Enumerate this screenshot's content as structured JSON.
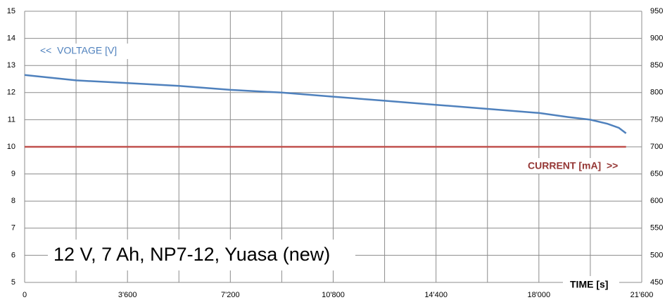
{
  "chart_data": {
    "type": "line",
    "title": "12 V, 7 Ah, NP7-12, Yuasa (new)",
    "x_label": "TIME [s]",
    "annotations": [
      "<<  VOLTAGE [V]",
      "CURRENT [mA]  >>"
    ],
    "series": [
      {
        "name": "VOLTAGE [V]",
        "color": "#4f81bd",
        "axis": "y",
        "x": [
          0,
          1800,
          3600,
          5400,
          7200,
          9000,
          10800,
          12600,
          14400,
          16200,
          18000,
          19000,
          19800,
          20400,
          20800,
          21050
        ],
        "values": [
          12.65,
          12.45,
          12.35,
          12.25,
          12.1,
          12.0,
          11.85,
          11.7,
          11.55,
          11.4,
          11.25,
          11.1,
          11.0,
          10.85,
          10.7,
          10.5
        ]
      },
      {
        "name": "CURRENT [mA]",
        "color": "#c0504d",
        "axis": "y2",
        "x": [
          0,
          21050
        ],
        "values": [
          700,
          700
        ]
      }
    ],
    "xlim": [
      0,
      21600
    ],
    "xticks": [
      0,
      {
        "value": 3600,
        "label": "3'600"
      },
      {
        "value": 7200,
        "label": "7'200"
      },
      {
        "value": 10800,
        "label": "10'800"
      },
      {
        "value": 14400,
        "label": "14'400"
      },
      {
        "value": 18000,
        "label": "18'000"
      },
      {
        "value": 21600,
        "label": "21'600"
      }
    ],
    "x_minor_ticks": [
      1800,
      5400,
      9000,
      12600,
      16200,
      19800
    ],
    "ylim": [
      5,
      15
    ],
    "yticks": [
      5,
      6,
      7,
      8,
      9,
      10,
      11,
      12,
      13,
      14,
      15
    ],
    "y2lim": [
      450,
      950
    ],
    "y2ticks": [
      450,
      500,
      550,
      600,
      650,
      700,
      750,
      800,
      850,
      900,
      950
    ],
    "grid": true
  }
}
